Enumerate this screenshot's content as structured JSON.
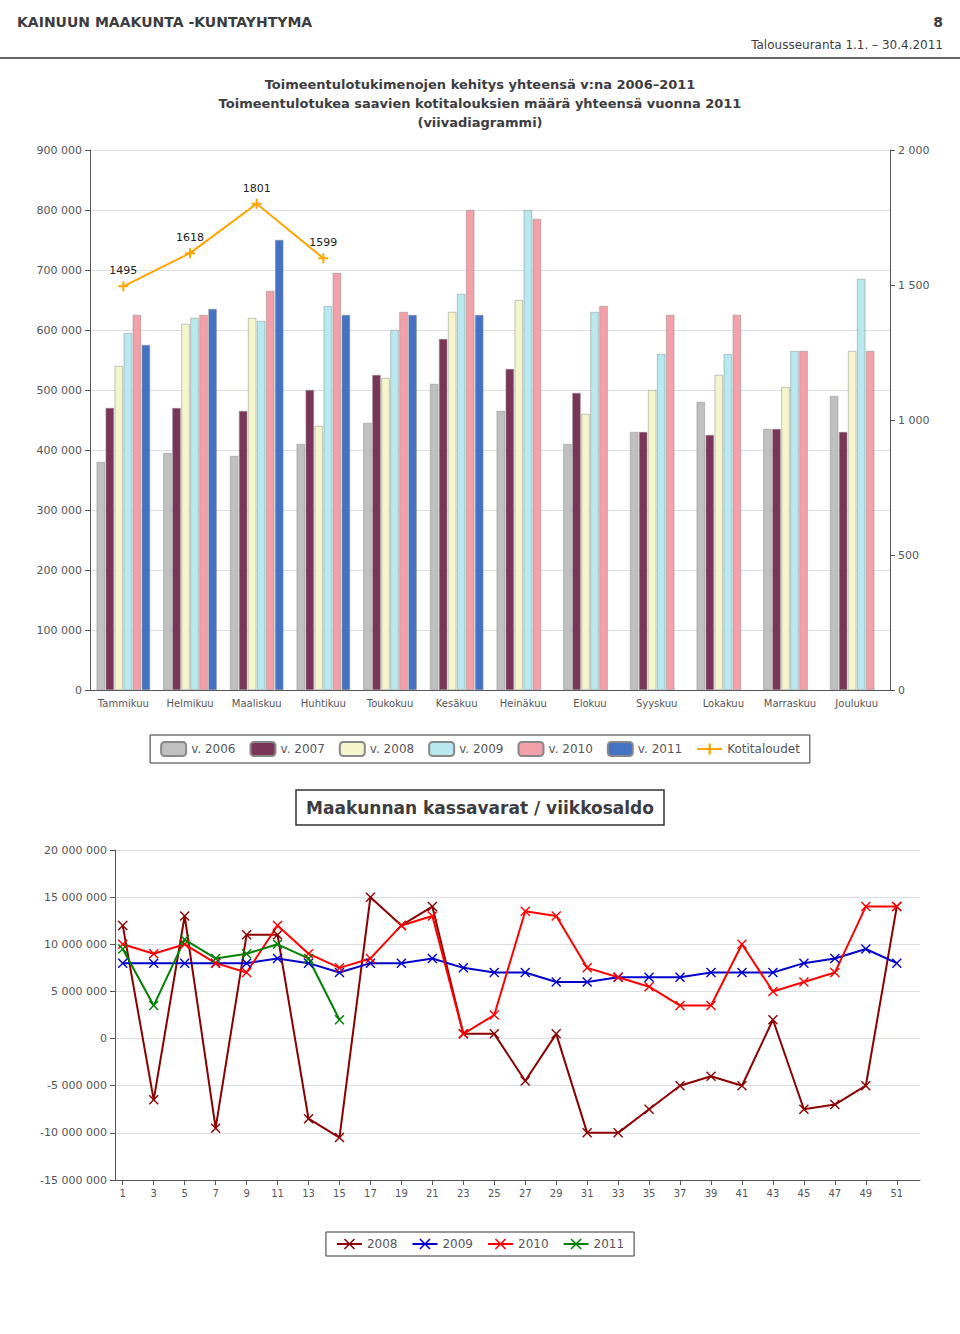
{
  "title": "KAINUUN MAAKUNTA -KUNTAYHTYMA",
  "subtitle": "Talousseuranta 1.1. – 30.4.2011",
  "annotations": [
    "8"
  ],
  "chart_data": [
    {
      "type": "bar",
      "title": "Toimeentulotukimenojen kehitys yhteensä v:na 2006–2011\nToimeentulotukea saavien kotitalouksien määrä yhteensä vuonna 2011\n(viivadiagrammi)",
      "categories": [
        "Tammikuu",
        "Helmikuu",
        "Maaliskuu",
        "Huhtikuu",
        "Toukokuu",
        "Kesäkuu",
        "Heinäkuu",
        "Elokuu",
        "Syyskuu",
        "Lokakuu",
        "Marraskuu",
        "Joulukuu"
      ],
      "series": [
        {
          "name": "v. 2006",
          "color": "#c0c0c0",
          "values": [
            380000,
            395000,
            390000,
            410000,
            445000,
            510000,
            465000,
            410000,
            430000,
            480000,
            435000,
            490000
          ]
        },
        {
          "name": "v. 2007",
          "color": "#7b3558",
          "values": [
            470000,
            470000,
            465000,
            500000,
            525000,
            585000,
            535000,
            495000,
            430000,
            425000,
            435000,
            430000
          ]
        },
        {
          "name": "v. 2008",
          "color": "#f5f5cc",
          "values": [
            540000,
            610000,
            620000,
            440000,
            520000,
            630000,
            650000,
            460000,
            500000,
            525000,
            505000,
            565000
          ]
        },
        {
          "name": "v. 2009",
          "color": "#b8e8f0",
          "values": [
            595000,
            620000,
            615000,
            640000,
            600000,
            660000,
            800000,
            630000,
            560000,
            560000,
            565000,
            685000
          ]
        },
        {
          "name": "v. 2010",
          "color": "#f4a0a8",
          "values": [
            625000,
            625000,
            665000,
            695000,
            630000,
            800000,
            785000,
            640000,
            625000,
            625000,
            565000,
            565000
          ]
        },
        {
          "name": "v. 2011",
          "color": "#4472c4",
          "values": [
            575000,
            635000,
            750000,
            625000,
            625000,
            625000,
            null,
            null,
            null,
            null,
            null,
            null
          ]
        },
        {
          "name": "Kotitaloudet",
          "type": "line",
          "axis": "y2",
          "color": "#ffa500",
          "marker": "plus",
          "data_labels": true,
          "values": [
            1495,
            1618,
            1801,
            1599,
            null,
            null,
            null,
            null,
            null,
            null,
            null,
            null
          ]
        }
      ],
      "ylim": [
        0,
        900000
      ],
      "yticks": [
        0,
        {
          "value": 100000,
          "label": "100 000"
        },
        {
          "value": 200000,
          "label": "200 000"
        },
        {
          "value": 300000,
          "label": "300 000"
        },
        {
          "value": 400000,
          "label": "400 000"
        },
        {
          "value": 500000,
          "label": "500 000"
        },
        {
          "value": 600000,
          "label": "600 000"
        },
        {
          "value": 700000,
          "label": "700 000"
        },
        {
          "value": 800000,
          "label": "800 000"
        },
        {
          "value": 900000,
          "label": "900 000"
        }
      ],
      "y2lim": [
        0,
        2000
      ],
      "y2ticks": [
        0,
        500,
        {
          "value": 1000,
          "label": "1 000"
        },
        {
          "value": 1500,
          "label": "1 500"
        },
        {
          "value": 2000,
          "label": "2 000"
        }
      ],
      "grid": true,
      "legend": "bottom"
    },
    {
      "type": "line",
      "title": "Maakunnan kassavarat / viikkosaldo",
      "x": [
        1,
        3,
        5,
        7,
        9,
        11,
        13,
        15,
        17,
        19,
        21,
        23,
        25,
        27,
        29,
        31,
        33,
        35,
        37,
        39,
        41,
        43,
        45,
        47,
        49,
        51
      ],
      "series": [
        {
          "name": "2008",
          "color": "#8b0000",
          "marker": "x",
          "values": [
            12000000,
            -6500000,
            13000000,
            -9500000,
            11000000,
            11000000,
            -8500000,
            -10500000,
            15000000,
            12000000,
            14000000,
            500000,
            500000,
            -4500000,
            500000,
            -10000000,
            -10000000,
            -7500000,
            -5000000,
            -4000000,
            -5000000,
            2000000,
            -7500000,
            -7000000,
            -5000000,
            14000000
          ]
        },
        {
          "name": "2009",
          "color": "#0000cc",
          "marker": "x",
          "values": [
            8000000,
            8000000,
            8000000,
            8000000,
            8000000,
            8500000,
            8000000,
            7000000,
            8000000,
            8000000,
            8500000,
            7500000,
            7000000,
            7000000,
            6000000,
            6000000,
            6500000,
            6500000,
            6500000,
            7000000,
            7000000,
            7000000,
            8000000,
            8500000,
            9500000,
            8000000
          ]
        },
        {
          "name": "2010",
          "color": "#ff0000",
          "marker": "x",
          "values": [
            10000000,
            9000000,
            10000000,
            8000000,
            7000000,
            12000000,
            9000000,
            7500000,
            8500000,
            12000000,
            13000000,
            500000,
            2500000,
            13500000,
            13000000,
            7500000,
            6500000,
            5500000,
            3500000,
            3500000,
            10000000,
            5000000,
            6000000,
            7000000,
            14000000,
            14000000
          ]
        },
        {
          "name": "2011",
          "color": "#008000",
          "marker": "x",
          "values": [
            9500000,
            3500000,
            10500000,
            8500000,
            9000000,
            10000000,
            8500000,
            2000000,
            null,
            null,
            null,
            null,
            null,
            null,
            null,
            null,
            null,
            null,
            null,
            null,
            null,
            null,
            null,
            null,
            null,
            null
          ]
        }
      ],
      "xlim": [
        0.5,
        52.5
      ],
      "xticks": [
        1,
        3,
        5,
        7,
        9,
        11,
        13,
        15,
        17,
        19,
        21,
        23,
        25,
        27,
        29,
        31,
        33,
        35,
        37,
        39,
        41,
        43,
        45,
        47,
        49,
        51
      ],
      "ylim": [
        -15000000,
        20000000
      ],
      "yticks": [
        {
          "value": -15000000,
          "label": "-15 000 000"
        },
        {
          "value": -10000000,
          "label": "-10 000 000"
        },
        {
          "value": -5000000,
          "label": "-5 000 000"
        },
        0,
        {
          "value": 5000000,
          "label": "5 000 000"
        },
        {
          "value": 10000000,
          "label": "10 000 000"
        },
        {
          "value": 15000000,
          "label": "15 000 000"
        },
        {
          "value": 20000000,
          "label": "20 000 000"
        }
      ],
      "grid": true,
      "legend": "bottom"
    }
  ]
}
